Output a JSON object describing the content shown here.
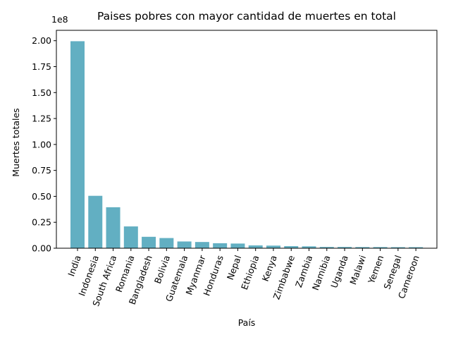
{
  "chart_data": {
    "type": "bar",
    "title": "Paises pobres con mayor cantidad de muertes en total",
    "xlabel": "País",
    "ylabel": "Muertes totales",
    "y_offset_label": "1e8",
    "ylim": [
      0,
      2.1
    ],
    "y_scale_factor": 100000000,
    "yticks": [
      "0.00",
      "0.25",
      "0.50",
      "0.75",
      "1.00",
      "1.25",
      "1.50",
      "1.75",
      "2.00"
    ],
    "ytick_values": [
      0,
      0.25,
      0.5,
      0.75,
      1.0,
      1.25,
      1.5,
      1.75,
      2.0
    ],
    "categories": [
      "India",
      "Indonesia",
      "South Africa",
      "Romania",
      "Bangladesh",
      "Bolivia",
      "Guatemala",
      "Myanmar",
      "Honduras",
      "Nepal",
      "Ethiopia",
      "Kenya",
      "Zimbabwe",
      "Zambia",
      "Namibia",
      "Uganda",
      "Malawi",
      "Yemen",
      "Senegal",
      "Cameroon"
    ],
    "values": [
      1.995,
      0.505,
      0.395,
      0.21,
      0.11,
      0.098,
      0.065,
      0.06,
      0.048,
      0.045,
      0.027,
      0.025,
      0.02,
      0.018,
      0.012,
      0.012,
      0.011,
      0.011,
      0.01,
      0.01
    ],
    "bar_color": "#62afc2",
    "grid": false,
    "legend": "none"
  }
}
